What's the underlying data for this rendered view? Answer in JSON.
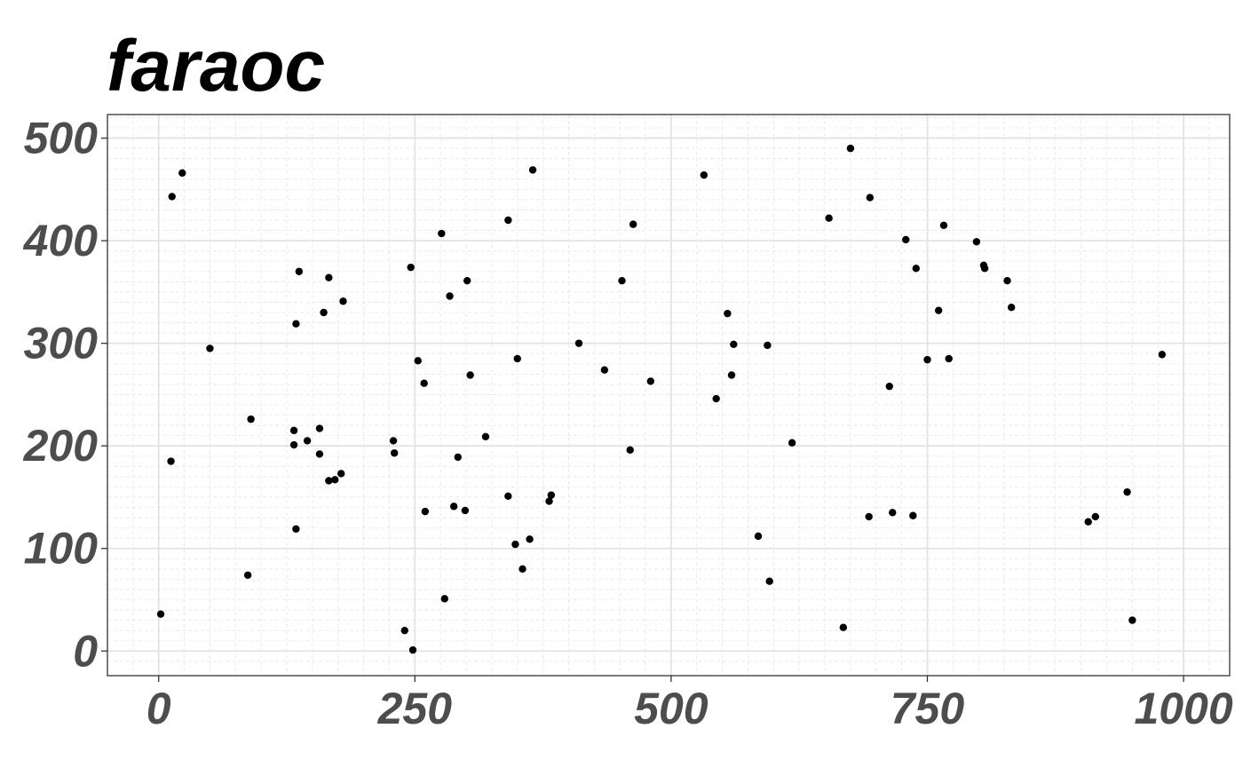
{
  "chart_data": {
    "type": "scatter",
    "title": "faraoc",
    "xlabel": "",
    "ylabel": "",
    "xlim": [
      -50,
      1045
    ],
    "ylim": [
      -24,
      523
    ],
    "x_ticks": [
      0,
      250,
      500,
      750,
      1000
    ],
    "y_ticks": [
      0,
      100,
      200,
      300,
      400,
      500
    ],
    "x_tick_labels": [
      "0",
      "250",
      "500",
      "750",
      "1000"
    ],
    "y_tick_labels": [
      "0",
      "100",
      "200",
      "300",
      "400",
      "500"
    ],
    "grid": true,
    "legend": "none",
    "point_color": "#000000",
    "series": [
      {
        "points": [
          [
            2,
            36
          ],
          [
            12,
            185
          ],
          [
            13,
            443
          ],
          [
            23,
            466
          ],
          [
            50,
            295
          ],
          [
            87,
            74
          ],
          [
            90,
            226
          ],
          [
            132,
            215
          ],
          [
            132,
            201
          ],
          [
            134,
            119
          ],
          [
            134,
            319
          ],
          [
            137,
            370
          ],
          [
            145,
            205
          ],
          [
            157,
            217
          ],
          [
            157,
            192
          ],
          [
            161,
            330
          ],
          [
            166,
            364
          ],
          [
            166,
            166
          ],
          [
            172,
            167
          ],
          [
            178,
            173
          ],
          [
            180,
            341
          ],
          [
            229,
            205
          ],
          [
            230,
            193
          ],
          [
            240,
            20
          ],
          [
            246,
            374
          ],
          [
            248,
            1
          ],
          [
            253,
            283
          ],
          [
            259,
            261
          ],
          [
            260,
            136
          ],
          [
            276,
            407
          ],
          [
            279,
            51
          ],
          [
            284,
            346
          ],
          [
            288,
            141
          ],
          [
            292,
            189
          ],
          [
            299,
            137
          ],
          [
            301,
            361
          ],
          [
            304,
            269
          ],
          [
            319,
            209
          ],
          [
            341,
            420
          ],
          [
            341,
            151
          ],
          [
            348,
            104
          ],
          [
            350,
            285
          ],
          [
            355,
            80
          ],
          [
            362,
            109
          ],
          [
            365,
            469
          ],
          [
            381,
            146
          ],
          [
            383,
            152
          ],
          [
            410,
            300
          ],
          [
            435,
            274
          ],
          [
            452,
            361
          ],
          [
            460,
            196
          ],
          [
            463,
            416
          ],
          [
            480,
            263
          ],
          [
            532,
            464
          ],
          [
            544,
            246
          ],
          [
            555,
            329
          ],
          [
            559,
            269
          ],
          [
            561,
            299
          ],
          [
            585,
            112
          ],
          [
            594,
            298
          ],
          [
            596,
            68
          ],
          [
            618,
            203
          ],
          [
            654,
            422
          ],
          [
            668,
            23
          ],
          [
            675,
            490
          ],
          [
            693,
            131
          ],
          [
            694,
            442
          ],
          [
            713,
            258
          ],
          [
            716,
            135
          ],
          [
            729,
            401
          ],
          [
            736,
            132
          ],
          [
            739,
            373
          ],
          [
            750,
            284
          ],
          [
            761,
            332
          ],
          [
            766,
            415
          ],
          [
            771,
            285
          ],
          [
            798,
            399
          ],
          [
            805,
            376
          ],
          [
            806,
            373
          ],
          [
            828,
            361
          ],
          [
            832,
            335
          ],
          [
            907,
            126
          ],
          [
            914,
            131
          ],
          [
            945,
            155
          ],
          [
            950,
            30
          ],
          [
            979,
            289
          ]
        ]
      }
    ]
  }
}
